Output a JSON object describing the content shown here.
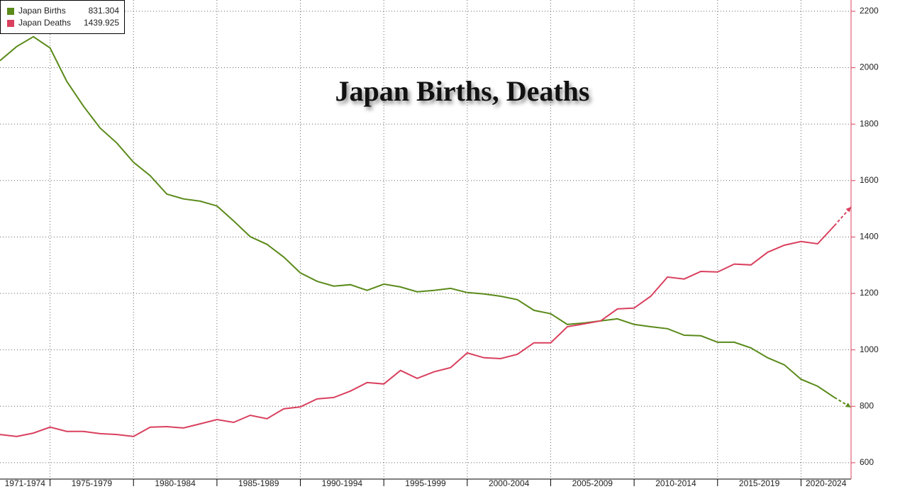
{
  "chart_data": {
    "type": "line",
    "title": "Japan Births, Deaths",
    "x": [
      1971,
      1972,
      1973,
      1974,
      1975,
      1976,
      1977,
      1978,
      1979,
      1980,
      1981,
      1982,
      1983,
      1984,
      1985,
      1986,
      1987,
      1988,
      1989,
      1990,
      1991,
      1992,
      1993,
      1994,
      1995,
      1996,
      1997,
      1998,
      1999,
      2000,
      2001,
      2002,
      2003,
      2004,
      2005,
      2006,
      2007,
      2008,
      2009,
      2010,
      2011,
      2012,
      2013,
      2014,
      2015,
      2016,
      2017,
      2018,
      2019,
      2020,
      2021,
      2022
    ],
    "series": [
      {
        "name": "Japan Births",
        "color": "#5a8a1a",
        "values": [
          2025,
          2075,
          2110,
          2070,
          1952,
          1864,
          1786,
          1733,
          1665,
          1617,
          1552,
          1535,
          1527,
          1510,
          1457,
          1401,
          1374,
          1329,
          1273,
          1243,
          1226,
          1231,
          1211,
          1233,
          1223,
          1206,
          1211,
          1218,
          1203,
          1198,
          1190,
          1178,
          1140,
          1128,
          1090,
          1095,
          1103,
          1110,
          1090,
          1082,
          1075,
          1052,
          1050,
          1027,
          1027,
          1007,
          972,
          947,
          896,
          871,
          831.304,
          796
        ]
      },
      {
        "name": "Japan Deaths",
        "color": "#d9405e",
        "values": [
          700,
          693,
          705,
          726,
          711,
          711,
          703,
          700,
          693,
          726,
          728,
          723,
          738,
          753,
          743,
          768,
          756,
          791,
          798,
          826,
          831,
          854,
          884,
          879,
          927,
          899,
          922,
          937,
          989,
          972,
          969,
          984,
          1025,
          1025,
          1082,
          1092,
          1103,
          1145,
          1148,
          1190,
          1258,
          1251,
          1278,
          1276,
          1304,
          1301,
          1346,
          1371,
          1384,
          1376,
          1439.925,
          1507
        ]
      }
    ],
    "projection_from_x": 2021,
    "xlim": [
      1971,
      2022
    ],
    "xticks": [
      1974,
      1979,
      1984,
      1989,
      1994,
      1999,
      2004,
      2009,
      2014,
      2019
    ],
    "period_labels": [
      "1971-1974",
      "1975-1979",
      "1980-1984",
      "1985-1989",
      "1990-1994",
      "1995-1999",
      "2000-2004",
      "2005-2009",
      "2010-2014",
      "2015-2019",
      "2020-2024"
    ],
    "ylim": [
      542,
      2240
    ],
    "yticks": [
      600,
      800,
      1000,
      1200,
      1400,
      1600,
      1800,
      2000,
      2200
    ],
    "grid": true,
    "legend": "top-left"
  }
}
